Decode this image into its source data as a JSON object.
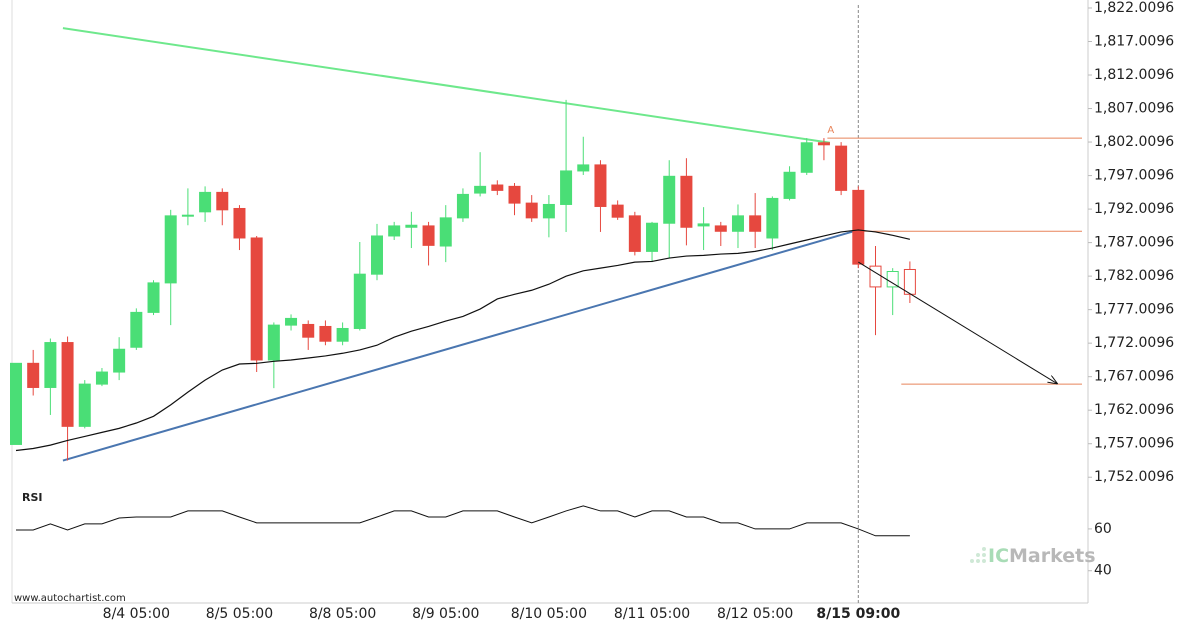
{
  "chart_data": [
    {
      "type": "candlestick",
      "categories": [
        null,
        null,
        null,
        null,
        null,
        null,
        null,
        "8/4 05:00",
        null,
        null,
        null,
        null,
        null,
        "8/5 05:00",
        null,
        null,
        null,
        null,
        null,
        "8/8 05:00",
        null,
        null,
        null,
        null,
        null,
        "8/9 05:00",
        null,
        null,
        null,
        null,
        null,
        "8/10 05:00",
        null,
        null,
        null,
        null,
        null,
        "8/11 05:00",
        null,
        null,
        null,
        null,
        null,
        "8/12 05:00",
        null,
        null,
        null,
        null,
        null,
        "8/15 09:00",
        null,
        null,
        null
      ],
      "open": [
        1756.9,
        1769.0,
        1765.4,
        1772.1,
        1759.6,
        1765.9,
        1767.7,
        1771.4,
        1776.6,
        1781.0,
        1791.0,
        1791.6,
        1794.5,
        1792.1,
        1787.7,
        1769.5,
        1774.7,
        1774.8,
        1774.5,
        1772.3,
        1774.2,
        1782.3,
        1788.0,
        1789.3,
        1789.5,
        1786.5,
        1790.7,
        1794.4,
        1795.6,
        1795.4,
        1792.9,
        1790.7,
        1792.7,
        1797.7,
        1798.6,
        1792.6,
        1791.0,
        1785.7,
        1789.9,
        1796.9,
        1789.5,
        1789.5,
        1788.7,
        1791.0,
        1787.7,
        1793.6,
        1797.5,
        1801.9,
        1801.4,
        1794.8,
        1783.5,
        1780.4,
        1783.0
      ],
      "high": [
        1769.0,
        1771.0,
        1772.7,
        1773.0,
        1766.5,
        1768.3,
        1772.9,
        1777.2,
        1781.4,
        1791.9,
        1795.1,
        1795.4,
        1795.1,
        1792.6,
        1788.0,
        1775.1,
        1776.3,
        1775.4,
        1775.4,
        1775.1,
        1787.1,
        1789.8,
        1790.1,
        1791.6,
        1790.1,
        1792.6,
        1795.1,
        1800.5,
        1796.3,
        1795.9,
        1794.1,
        1794.1,
        1808.3,
        1802.8,
        1799.3,
        1793.3,
        1791.6,
        1790.1,
        1799.3,
        1799.6,
        1792.3,
        1790.1,
        1792.7,
        1794.4,
        1793.9,
        1798.4,
        1802.6,
        1802.6,
        1802.0,
        1795.4,
        1786.5,
        1783.2,
        1784.2
      ],
      "low": [
        1756.9,
        1764.2,
        1761.3,
        1754.5,
        1759.3,
        1765.6,
        1766.5,
        1771.0,
        1776.2,
        1774.7,
        1789.6,
        1790.1,
        1789.6,
        1785.9,
        1767.7,
        1765.3,
        1773.9,
        1771.0,
        1771.7,
        1771.7,
        1773.9,
        1781.4,
        1787.4,
        1786.2,
        1783.6,
        1784.1,
        1790.1,
        1793.9,
        1794.1,
        1791.1,
        1790.1,
        1787.8,
        1788.6,
        1797.1,
        1788.6,
        1790.4,
        1785.1,
        1784.1,
        1784.7,
        1786.6,
        1785.9,
        1786.5,
        1786.2,
        1786.2,
        1785.9,
        1793.3,
        1797.1,
        1799.3,
        1794.1,
        1783.2,
        1773.2,
        1776.2,
        1778.0
      ],
      "close": [
        1769.0,
        1765.4,
        1772.1,
        1759.6,
        1765.9,
        1767.7,
        1771.1,
        1776.6,
        1781.0,
        1791.0,
        1791.1,
        1794.5,
        1791.9,
        1787.7,
        1769.5,
        1774.7,
        1775.7,
        1772.9,
        1772.3,
        1774.2,
        1782.3,
        1788.0,
        1789.5,
        1789.6,
        1786.6,
        1790.7,
        1794.2,
        1795.4,
        1794.8,
        1792.9,
        1790.7,
        1792.7,
        1797.7,
        1798.6,
        1792.4,
        1790.8,
        1785.7,
        1789.9,
        1796.9,
        1789.3,
        1789.8,
        1788.7,
        1791.0,
        1788.7,
        1793.6,
        1797.5,
        1801.9,
        1801.6,
        1794.8,
        1783.8,
        1780.4,
        1782.7,
        1779.3
      ],
      "ma": [
        1756.0,
        1756.3,
        1756.8,
        1757.5,
        1758.1,
        1758.7,
        1759.3,
        1760.1,
        1761.1,
        1762.8,
        1764.7,
        1766.5,
        1768.0,
        1768.9,
        1769.0,
        1769.3,
        1769.5,
        1769.8,
        1770.1,
        1770.5,
        1771.0,
        1771.7,
        1772.9,
        1773.8,
        1774.5,
        1775.3,
        1776.0,
        1777.1,
        1778.6,
        1779.3,
        1779.9,
        1780.8,
        1782.0,
        1782.8,
        1783.2,
        1783.6,
        1784.1,
        1784.2,
        1784.7,
        1785.0,
        1785.1,
        1785.3,
        1785.4,
        1785.7,
        1786.2,
        1786.8,
        1787.4,
        1788.0,
        1788.6,
        1788.9,
        1788.6,
        1788.1,
        1787.5
      ],
      "up_color": "#4ade76",
      "down_color": "#e6483f",
      "ma_color": "#111111",
      "hollow_from": 50,
      "highlight_category": 49,
      "ylim": [
        1751.0,
        1823.2
      ],
      "yticks": [
        {
          "value": 1822.0096,
          "label": "1,822.0096"
        },
        {
          "value": 1817.0096,
          "label": "1,817.0096"
        },
        {
          "value": 1812.0096,
          "label": "1,812.0096"
        },
        {
          "value": 1807.0096,
          "label": "1,807.0096"
        },
        {
          "value": 1802.0096,
          "label": "1,802.0096"
        },
        {
          "value": 1797.0096,
          "label": "1,797.0096"
        },
        {
          "value": 1792.0096,
          "label": "1,792.0096"
        },
        {
          "value": 1787.0096,
          "label": "1,787.0096"
        },
        {
          "value": 1782.0096,
          "label": "1,782.0096"
        },
        {
          "value": 1777.0096,
          "label": "1,777.0096"
        },
        {
          "value": 1772.0096,
          "label": "1,772.0096"
        },
        {
          "value": 1767.0096,
          "label": "1,767.0096"
        },
        {
          "value": 1762.0096,
          "label": "1,762.0096"
        },
        {
          "value": 1757.0096,
          "label": "1,757.0096"
        },
        {
          "value": 1752.0096,
          "label": "1,752.0096"
        }
      ],
      "trend_lines": [
        {
          "color": "#6ee88c",
          "x": [
            2.73,
            47.35
          ],
          "y": [
            1819.0,
            1801.9
          ]
        },
        {
          "color": "#4a76b0",
          "x": [
            2.73,
            49
          ],
          "y": [
            1754.5,
            1788.9
          ]
        }
      ],
      "levels": [
        {
          "value": 1802.6,
          "from": 47.2
        },
        {
          "value": 1788.7,
          "from": 49.2
        },
        {
          "value": 1765.9,
          "from": 51.5
        }
      ],
      "level_color": "#e8845a",
      "forecast": {
        "x": [
          49,
          60.55
        ],
        "y": [
          1784.1,
          1766.0
        ]
      },
      "pattern_point": {
        "label": "A",
        "x": 47.4,
        "y": 1803.8
      }
    },
    {
      "type": "line",
      "title": "RSI",
      "values": [
        59.5,
        59.5,
        62.4,
        59.5,
        62.4,
        62.4,
        65.2,
        65.7,
        65.7,
        65.7,
        68.6,
        68.6,
        68.6,
        65.7,
        62.9,
        62.9,
        62.9,
        62.9,
        62.9,
        62.9,
        62.9,
        65.7,
        68.6,
        68.6,
        65.7,
        65.7,
        68.6,
        68.6,
        68.6,
        65.7,
        62.9,
        65.7,
        68.6,
        71.0,
        68.6,
        68.6,
        65.7,
        68.6,
        68.6,
        65.7,
        65.7,
        62.9,
        62.9,
        60.0,
        60.0,
        60.0,
        62.9,
        62.9,
        62.9,
        60.0,
        56.7,
        56.7,
        56.7
      ],
      "color": "#111111",
      "ylim": [
        26,
        81
      ],
      "yticks": [
        60,
        40
      ]
    }
  ],
  "footer": {
    "source": "www.autochartist.com",
    "brand_prefix": "IC",
    "brand_name": "Markets"
  }
}
